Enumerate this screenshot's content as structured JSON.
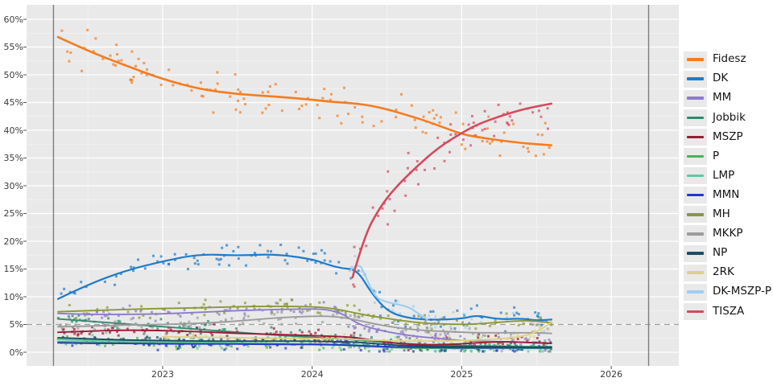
{
  "figure": {
    "kind": "opinion-polling-tracker",
    "background": "#ffffff",
    "panel_background": "#e9e9e9",
    "grid_color": "#ffffff",
    "threshold_line_color": "#a0a0a0",
    "election_line_color": "#7d7d7d",
    "tick_label_color": "#3c3c3c"
  },
  "chart_data": {
    "type": "line",
    "scatter_overlay": true,
    "title": "",
    "xlabel": "",
    "ylabel": "",
    "grid": true,
    "legend_position": "right",
    "xlim": [
      2022.05,
      2026.45
    ],
    "ylim": [
      -2.5,
      62.5
    ],
    "x_tick_years": [
      2023,
      2024,
      2025,
      2026
    ],
    "x_tick_labels": [
      "2023",
      "2024",
      "2025",
      "2026"
    ],
    "y_tick_values": [
      0,
      5,
      10,
      15,
      20,
      25,
      30,
      35,
      40,
      45,
      50,
      55,
      60
    ],
    "y_tick_labels": [
      "0%",
      "5%",
      "10%",
      "15%",
      "20%",
      "25%",
      "30%",
      "35%",
      "40%",
      "45%",
      "50%",
      "55%",
      "60%"
    ],
    "threshold": {
      "value": 5,
      "style": "dashed"
    },
    "election_lines": [
      2022.27,
      2026.25
    ],
    "series": [
      {
        "name": "Fidesz",
        "color": "#f57c1f",
        "line_width": 2.6,
        "scatter_sigma": 2.4,
        "scatter_density": 38,
        "x": [
          2022.3,
          2022.5,
          2022.75,
          2023.0,
          2023.25,
          2023.5,
          2023.75,
          2024.0,
          2024.1,
          2024.2,
          2024.3,
          2024.4,
          2024.5,
          2024.6,
          2024.75,
          2025.0,
          2025.1,
          2025.25,
          2025.4,
          2025.5,
          2025.6
        ],
        "y": [
          56.8,
          54.3,
          51.7,
          49.2,
          47.4,
          46.5,
          46.1,
          45.5,
          45.2,
          45.0,
          44.8,
          44.4,
          43.8,
          43.0,
          41.8,
          39.3,
          38.8,
          38.2,
          37.7,
          37.5,
          37.3
        ]
      },
      {
        "name": "DK",
        "color": "#1f7bc9",
        "line_width": 2.2,
        "scatter_sigma": 1.5,
        "scatter_density": 34,
        "x": [
          2022.3,
          2022.5,
          2022.75,
          2023.0,
          2023.25,
          2023.5,
          2023.75,
          2024.0,
          2024.1,
          2024.2,
          2024.3,
          2024.4,
          2024.5,
          2024.6,
          2024.75,
          2025.0,
          2025.1,
          2025.25,
          2025.4,
          2025.5,
          2025.6
        ],
        "y": [
          9.6,
          12.2,
          14.7,
          16.4,
          17.7,
          17.4,
          17.7,
          16.8,
          15.8,
          15.1,
          14.9,
          10.5,
          7.5,
          6.4,
          5.8,
          6.0,
          6.7,
          5.9,
          6.1,
          5.7,
          5.9
        ]
      },
      {
        "name": "MM",
        "color": "#8c7cc8",
        "line_width": 1.9,
        "scatter_sigma": 1.0,
        "scatter_density": 30,
        "x": [
          2022.3,
          2022.5,
          2022.75,
          2023.0,
          2023.25,
          2023.5,
          2023.75,
          2024.0,
          2024.1,
          2024.2,
          2024.3,
          2024.4,
          2024.5,
          2024.6,
          2024.75,
          2025.0,
          2025.1,
          2025.25,
          2025.4,
          2025.5,
          2025.6
        ],
        "y": [
          7.0,
          6.8,
          6.8,
          6.9,
          7.2,
          7.5,
          7.7,
          7.8,
          7.7,
          7.0,
          5.2,
          4.3,
          3.7,
          3.2,
          2.7,
          2.1,
          2.0,
          1.9,
          1.8,
          1.7,
          1.6
        ]
      },
      {
        "name": "Jobbik",
        "color": "#2e8b6e",
        "line_width": 1.9,
        "scatter_sigma": 0.9,
        "scatter_density": 30,
        "x": [
          2022.3,
          2022.5,
          2022.75,
          2023.0,
          2023.25,
          2023.5,
          2023.75,
          2024.0,
          2024.1,
          2024.2,
          2024.3,
          2024.4,
          2024.5,
          2024.6,
          2024.75,
          2025.0,
          2025.1,
          2025.25,
          2025.4,
          2025.5,
          2025.6
        ],
        "y": [
          6.0,
          5.6,
          5.1,
          4.6,
          4.1,
          3.6,
          3.1,
          2.7,
          2.5,
          2.4,
          2.2,
          2.0,
          1.8,
          1.6,
          1.4,
          1.2,
          1.1,
          1.1,
          1.0,
          1.0,
          1.0
        ]
      },
      {
        "name": "MSZP",
        "color": "#9c1b33",
        "line_width": 1.9,
        "scatter_sigma": 0.85,
        "scatter_density": 30,
        "x": [
          2022.3,
          2022.5,
          2022.75,
          2023.0,
          2023.25,
          2023.5,
          2023.75,
          2024.0,
          2024.1,
          2024.2,
          2024.3,
          2024.4,
          2024.5,
          2024.6,
          2024.75,
          2025.0,
          2025.1,
          2025.25,
          2025.4,
          2025.5,
          2025.6
        ],
        "y": [
          3.6,
          3.8,
          4.0,
          3.9,
          3.7,
          3.4,
          3.2,
          3.0,
          2.9,
          2.8,
          2.6,
          2.2,
          1.8,
          1.5,
          1.3,
          1.5,
          1.7,
          1.9,
          1.8,
          1.7,
          1.6
        ]
      },
      {
        "name": "P",
        "color": "#4daf5c",
        "line_width": 1.9,
        "scatter_sigma": 0.7,
        "scatter_density": 28,
        "x": [
          2022.3,
          2022.5,
          2022.75,
          2023.0,
          2023.25,
          2023.5,
          2023.75,
          2024.0,
          2024.1,
          2024.2,
          2024.3,
          2024.4,
          2024.5,
          2024.6,
          2024.75,
          2025.0,
          2025.1,
          2025.25,
          2025.4,
          2025.5,
          2025.6
        ],
        "y": [
          1.9,
          1.8,
          1.7,
          1.6,
          1.6,
          1.5,
          1.5,
          1.4,
          1.3,
          1.3,
          1.2,
          1.0,
          0.9,
          0.8,
          0.7,
          0.7,
          0.7,
          0.7,
          0.7,
          0.7,
          0.7
        ]
      },
      {
        "name": "LMP",
        "color": "#60c8a3",
        "line_width": 1.9,
        "scatter_sigma": 0.7,
        "scatter_density": 28,
        "x": [
          2022.3,
          2022.5,
          2022.75,
          2023.0,
          2023.25,
          2023.5,
          2023.75,
          2024.0,
          2024.1,
          2024.2,
          2024.3,
          2024.4,
          2024.5,
          2024.6,
          2024.75,
          2025.0,
          2025.1,
          2025.25,
          2025.4,
          2025.5,
          2025.6
        ],
        "y": [
          2.3,
          2.1,
          2.0,
          1.9,
          1.8,
          1.7,
          1.6,
          1.5,
          1.4,
          1.4,
          1.3,
          1.1,
          1.0,
          0.9,
          0.9,
          0.9,
          0.9,
          0.9,
          0.9,
          0.9,
          0.9
        ]
      },
      {
        "name": "MMN",
        "color": "#2338c6",
        "line_width": 1.9,
        "scatter_sigma": 0.7,
        "scatter_density": 28,
        "x": [
          2022.3,
          2022.5,
          2022.75,
          2023.0,
          2023.25,
          2023.5,
          2023.75,
          2024.0,
          2024.1,
          2024.2,
          2024.3,
          2024.4,
          2024.5,
          2024.6,
          2024.75,
          2025.0,
          2025.1,
          2025.25,
          2025.4,
          2025.5,
          2025.6
        ],
        "y": [
          1.7,
          1.6,
          1.6,
          1.5,
          1.5,
          1.5,
          1.4,
          1.4,
          1.4,
          1.3,
          1.2,
          1.1,
          1.0,
          0.9,
          0.9,
          0.8,
          0.8,
          0.8,
          0.8,
          0.8,
          0.8
        ]
      },
      {
        "name": "MH",
        "color": "#8a9933",
        "line_width": 1.9,
        "scatter_sigma": 1.0,
        "scatter_density": 30,
        "x": [
          2022.3,
          2022.5,
          2022.75,
          2023.0,
          2023.25,
          2023.5,
          2023.75,
          2024.0,
          2024.1,
          2024.2,
          2024.3,
          2024.4,
          2024.5,
          2024.6,
          2024.75,
          2025.0,
          2025.1,
          2025.25,
          2025.4,
          2025.5,
          2025.6
        ],
        "y": [
          7.3,
          7.5,
          7.7,
          7.9,
          8.0,
          8.2,
          8.3,
          8.2,
          8.0,
          7.6,
          7.0,
          6.5,
          6.1,
          5.7,
          5.2,
          5.0,
          5.1,
          5.4,
          5.7,
          5.6,
          5.3
        ]
      },
      {
        "name": "MKKP",
        "color": "#9c9c9c",
        "line_width": 1.9,
        "scatter_sigma": 1.0,
        "scatter_density": 30,
        "x": [
          2022.3,
          2022.5,
          2022.75,
          2023.0,
          2023.25,
          2023.5,
          2023.75,
          2024.0,
          2024.1,
          2024.2,
          2024.3,
          2024.4,
          2024.5,
          2024.6,
          2024.75,
          2025.0,
          2025.1,
          2025.25,
          2025.4,
          2025.5,
          2025.6
        ],
        "y": [
          4.6,
          4.7,
          4.9,
          5.0,
          5.2,
          5.6,
          6.2,
          6.5,
          6.5,
          6.3,
          5.8,
          5.2,
          4.7,
          4.3,
          3.9,
          3.6,
          3.5,
          3.5,
          3.5,
          3.5,
          3.4
        ]
      },
      {
        "name": "NP",
        "color": "#1c4e63",
        "line_width": 1.9,
        "scatter_sigma": 0.7,
        "scatter_density": 28,
        "x": [
          2022.3,
          2022.5,
          2022.75,
          2023.0,
          2023.25,
          2023.5,
          2023.75,
          2024.0,
          2024.1,
          2024.2,
          2024.3,
          2024.4,
          2024.5,
          2024.6,
          2024.75,
          2025.0,
          2025.1,
          2025.25,
          2025.4,
          2025.5,
          2025.6
        ],
        "y": [
          2.6,
          2.4,
          2.2,
          2.1,
          2.0,
          2.0,
          2.0,
          2.0,
          1.9,
          1.9,
          1.8,
          1.6,
          1.4,
          1.2,
          1.1,
          1.0,
          1.0,
          1.0,
          0.9,
          0.9,
          0.9
        ]
      },
      {
        "name": "2RK",
        "color": "#dcd281",
        "line_width": 1.9,
        "scatter_sigma": 0.8,
        "scatter_density": 28,
        "x": [
          2023.0,
          2023.25,
          2023.5,
          2023.75,
          2024.0,
          2024.1,
          2024.2,
          2024.3,
          2024.4,
          2024.5,
          2024.6,
          2024.75,
          2025.0,
          2025.1,
          2025.25,
          2025.4,
          2025.5,
          2025.6
        ],
        "y": [
          2.8,
          2.7,
          2.6,
          2.5,
          2.5,
          2.4,
          2.4,
          2.3,
          2.2,
          2.1,
          2.0,
          2.0,
          2.1,
          2.2,
          2.4,
          2.8,
          3.6,
          5.4
        ]
      },
      {
        "name": "DK-MSZP-P",
        "color": "#9ecff0",
        "line_width": 2.2,
        "scatter_sigma": 1.3,
        "scatter_density": 22,
        "scatter_until": 2025.6,
        "x": [
          2024.25,
          2024.31,
          2024.36,
          2024.42,
          2024.5,
          2024.58,
          2024.65,
          2024.72,
          2024.77
        ],
        "y": [
          14.6,
          16.4,
          13.5,
          9.9,
          9.0,
          8.6,
          8.1,
          6.8,
          5.9
        ]
      },
      {
        "name": "TISZA",
        "color": "#d34b5e",
        "line_width": 2.6,
        "scatter_sigma": 3.0,
        "scatter_density": 46,
        "x": [
          2024.27,
          2024.35,
          2024.45,
          2024.55,
          2024.7,
          2024.85,
          2025.0,
          2025.1,
          2025.25,
          2025.4,
          2025.5,
          2025.6
        ],
        "y": [
          13.5,
          21.0,
          26.0,
          29.5,
          33.5,
          37.0,
          39.5,
          41.0,
          42.5,
          43.7,
          44.3,
          44.8
        ]
      }
    ]
  }
}
